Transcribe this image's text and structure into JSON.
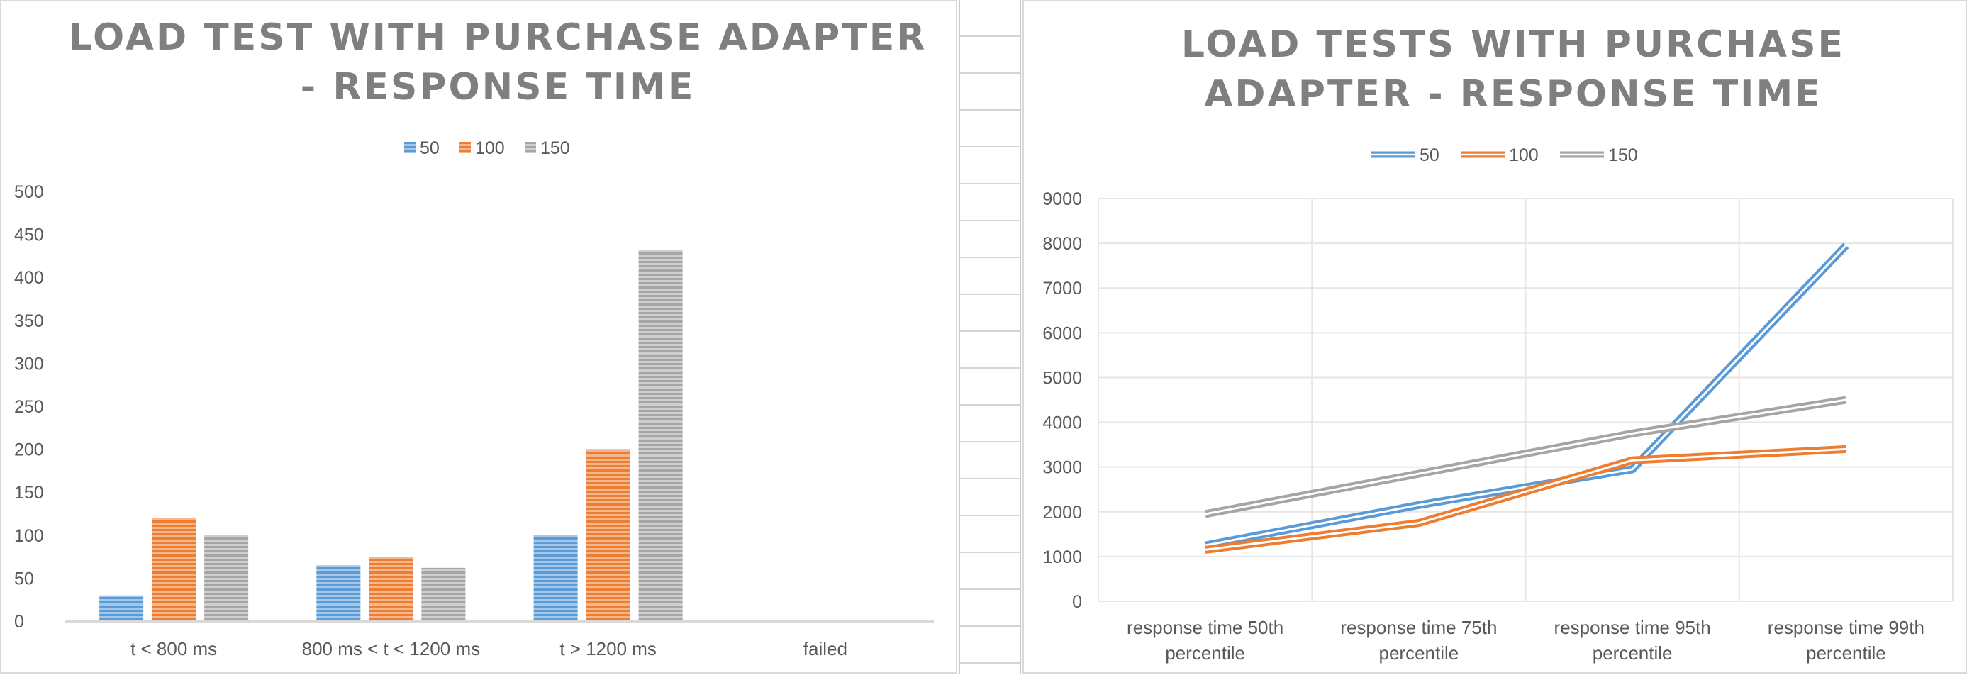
{
  "chart_data": [
    {
      "type": "bar",
      "title": [
        "LOAD TEST WITH PURCHASE ADAPTER",
        "- RESPONSE TIME"
      ],
      "categories": [
        "t < 800 ms",
        "800 ms < t < 1200 ms",
        "t > 1200 ms",
        "failed"
      ],
      "series": [
        {
          "name": "50",
          "values": [
            30,
            65,
            100,
            0
          ]
        },
        {
          "name": "100",
          "values": [
            120,
            75,
            200,
            0
          ]
        },
        {
          "name": "150",
          "values": [
            100,
            62,
            432,
            0
          ]
        }
      ],
      "ylim": [
        0,
        500
      ],
      "yticks": [
        "0",
        "50",
        "100",
        "150",
        "200",
        "250",
        "300",
        "350",
        "400",
        "450",
        "500"
      ],
      "legend_position": "top",
      "grid": false
    },
    {
      "type": "line",
      "title": [
        "LOAD TESTS WITH PURCHASE",
        "ADAPTER - RESPONSE TIME"
      ],
      "categories": [
        [
          "response time 50th",
          "percentile"
        ],
        [
          "response time 75th",
          "percentile"
        ],
        [
          "response time 95th",
          "percentile"
        ],
        [
          "response time 99th",
          "percentile"
        ]
      ],
      "series": [
        {
          "name": "50",
          "values": [
            1250,
            2150,
            2950,
            7950
          ]
        },
        {
          "name": "100",
          "values": [
            1150,
            1750,
            3150,
            3400
          ]
        },
        {
          "name": "150",
          "values": [
            1950,
            2850,
            3750,
            4500
          ]
        }
      ],
      "ylim": [
        0,
        9000
      ],
      "yticks": [
        "0",
        "1000",
        "2000",
        "3000",
        "4000",
        "5000",
        "6000",
        "7000",
        "8000",
        "9000"
      ],
      "legend_position": "top",
      "grid": true
    }
  ],
  "colors": {
    "50": "#5b9bd5",
    "100": "#ed7d31",
    "150": "#a5a5a5",
    "title": "#7f7f7f",
    "axis": "#d9d9d9",
    "text": "#595959"
  }
}
